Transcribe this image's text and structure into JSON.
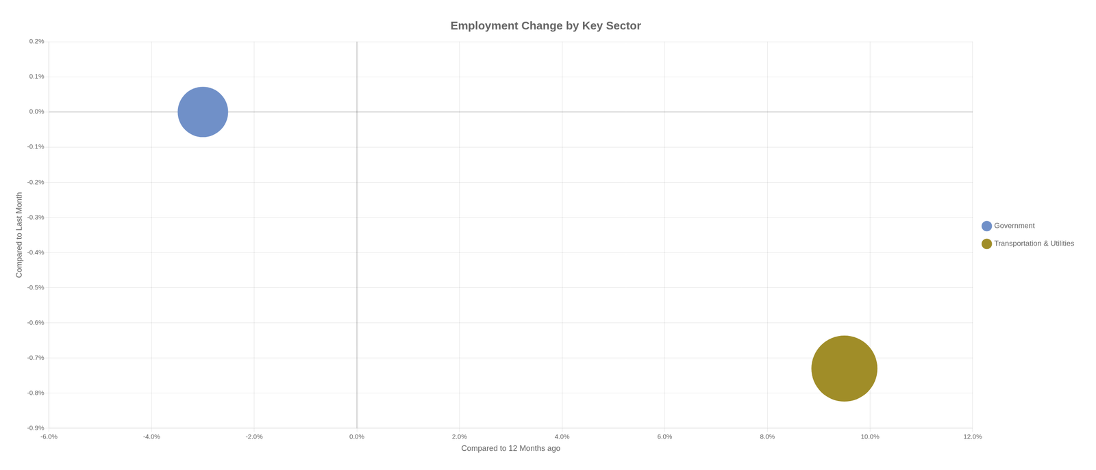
{
  "chart_data": {
    "type": "bubble",
    "title": "Employment Change by Key Sector",
    "xlabel": "Compared to 12 Months ago",
    "ylabel": "Compared to Last Month",
    "xlim": [
      -0.06,
      0.12
    ],
    "ylim": [
      -0.009,
      0.002
    ],
    "xticks": [
      {
        "value": -0.06,
        "label": "-6.0%"
      },
      {
        "value": -0.04,
        "label": "-4.0%"
      },
      {
        "value": -0.02,
        "label": "-2.0%"
      },
      {
        "value": 0.0,
        "label": "0.0%"
      },
      {
        "value": 0.02,
        "label": "2.0%"
      },
      {
        "value": 0.04,
        "label": "4.0%"
      },
      {
        "value": 0.06,
        "label": "6.0%"
      },
      {
        "value": 0.08,
        "label": "8.0%"
      },
      {
        "value": 0.1,
        "label": "10.0%"
      },
      {
        "value": 0.12,
        "label": "12.0%"
      }
    ],
    "yticks": [
      {
        "value": 0.002,
        "label": "0.2%"
      },
      {
        "value": 0.001,
        "label": "0.1%"
      },
      {
        "value": 0.0,
        "label": "0.0%"
      },
      {
        "value": -0.001,
        "label": "-0.1%"
      },
      {
        "value": -0.002,
        "label": "-0.2%"
      },
      {
        "value": -0.003,
        "label": "-0.3%"
      },
      {
        "value": -0.004,
        "label": "-0.4%"
      },
      {
        "value": -0.005,
        "label": "-0.5%"
      },
      {
        "value": -0.006,
        "label": "-0.6%"
      },
      {
        "value": -0.007,
        "label": "-0.7%"
      },
      {
        "value": -0.008,
        "label": "-0.8%"
      },
      {
        "value": -0.009,
        "label": "-0.9%"
      }
    ],
    "grid": true,
    "legend": "right",
    "series": [
      {
        "name": "Government",
        "color": "#7090c8",
        "x": [
          -0.03
        ],
        "values": [
          0.0
        ],
        "sizes": [
          7000
        ]
      },
      {
        "name": "Transportation & Utilities",
        "color": "#a08d28",
        "x": [
          0.095
        ],
        "values": [
          -0.0073
        ],
        "sizes": [
          12000
        ]
      }
    ]
  }
}
